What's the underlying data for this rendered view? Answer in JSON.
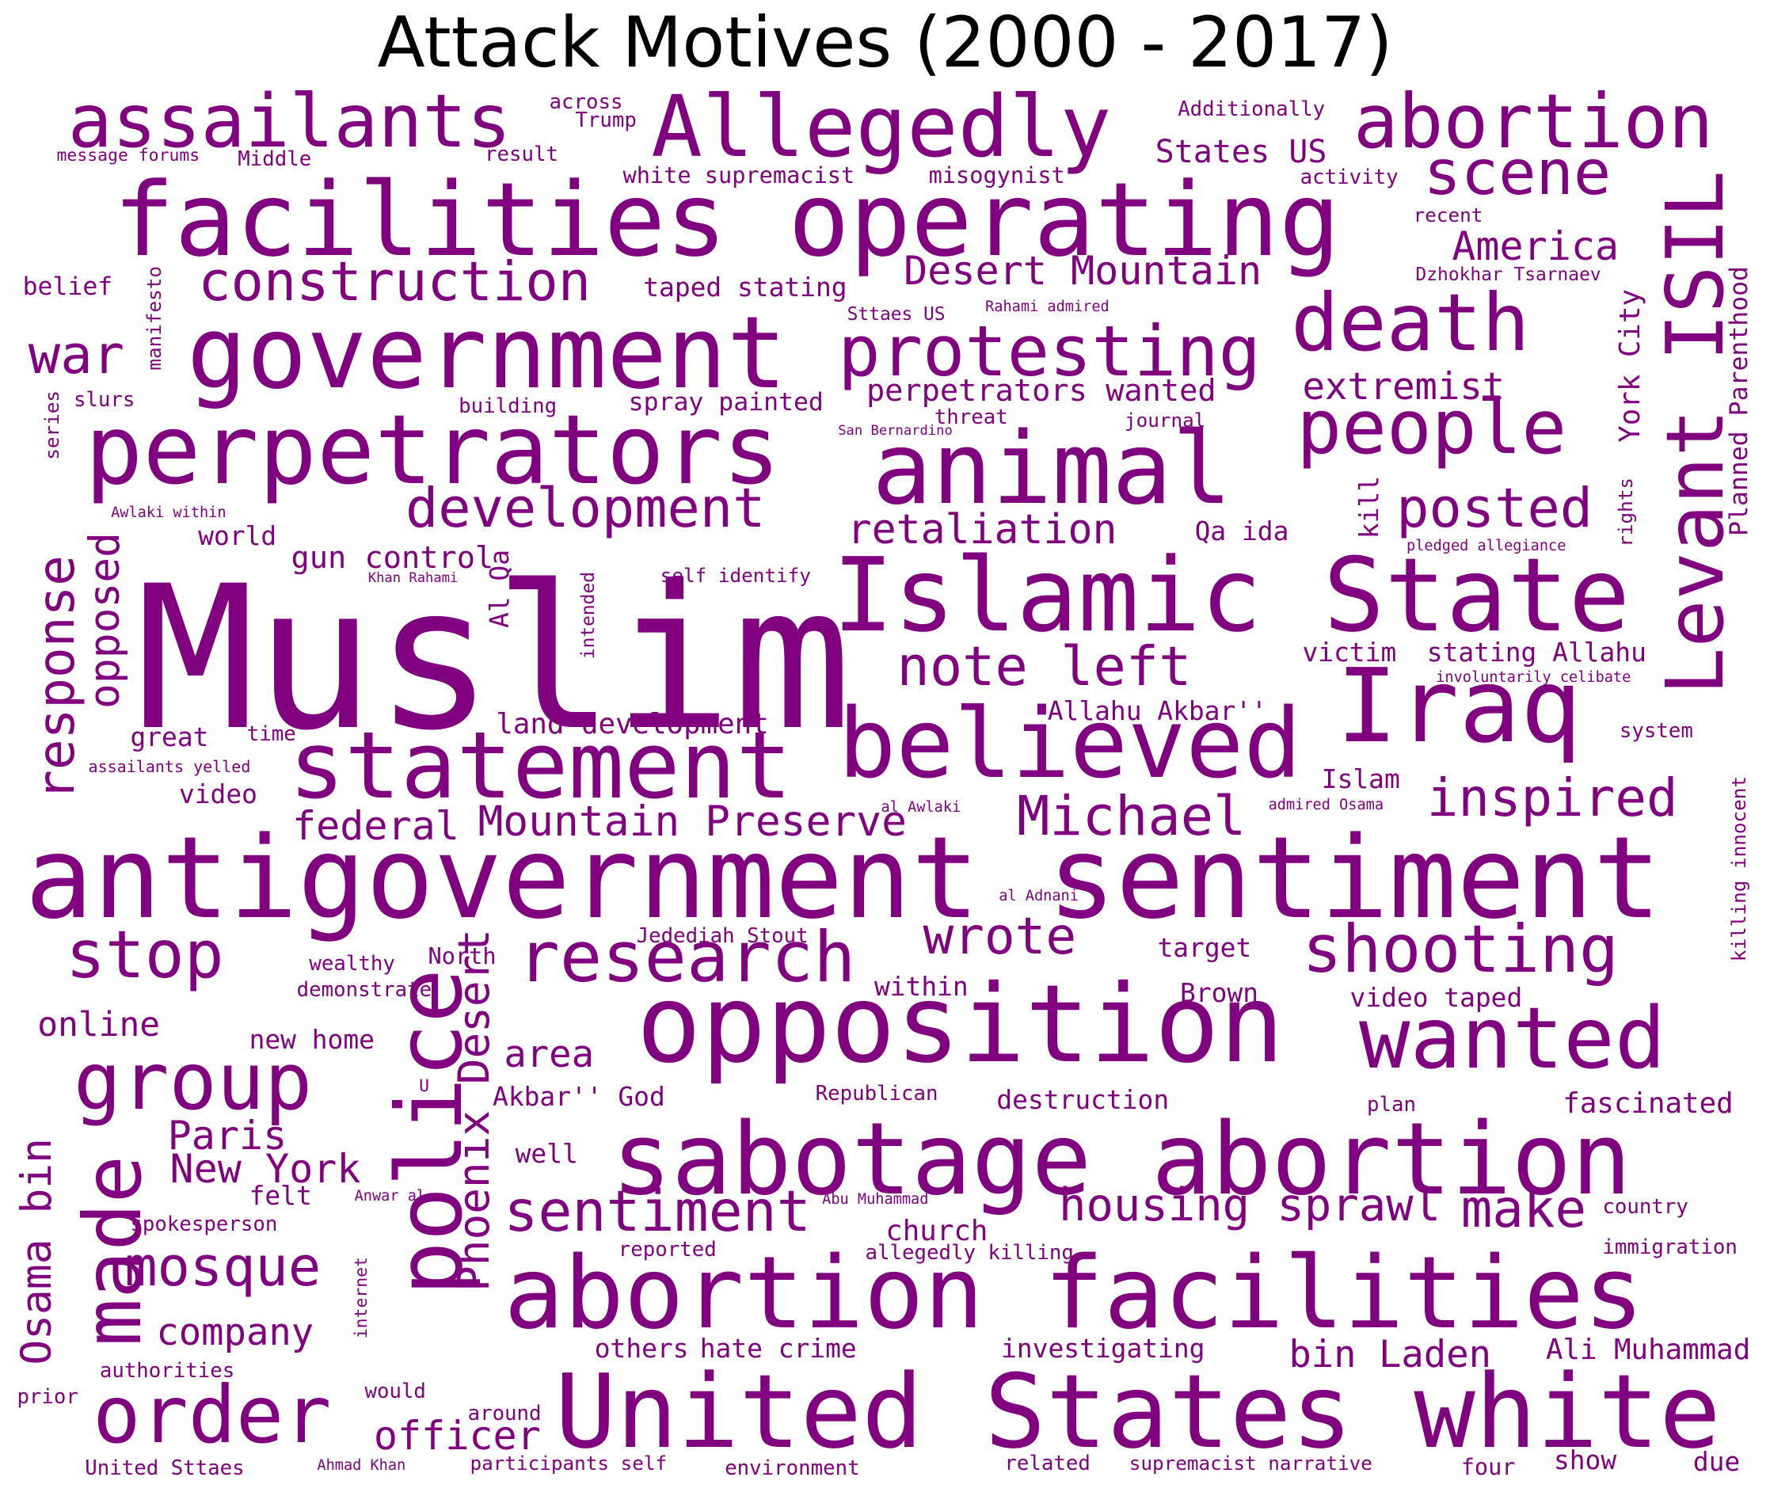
{
  "title": "Attack Motives (2000 - 2017)",
  "word_color": "#800080",
  "words": [
    "Muslim",
    "antigovernment sentiment",
    "facilities operating",
    "Islamic State",
    "opposition",
    "abortion facilities",
    "United States white",
    "sabotage abortion",
    "government",
    "perpetrators",
    "animal",
    "statement",
    "believed",
    "Iraq",
    "Levant ISIL",
    "police",
    "Allegedly",
    "assailants",
    "abortion",
    "protesting",
    "death",
    "people",
    "group",
    "research",
    "wanted",
    "shooting",
    "order",
    "made",
    "scene",
    "construction",
    "development",
    "note left",
    "stop",
    "Desert Mountain",
    "America",
    "war",
    "posted",
    "inspired",
    "Michael",
    "Mountain Preserve",
    "wrote",
    "sentiment",
    "housing sprawl",
    "make",
    "mosque",
    "Phoenix Desert",
    "response",
    "opposed",
    "federal",
    "retaliation",
    "extremist",
    "perpetrators wanted",
    "Osama bin",
    "Paris",
    "New York",
    "area",
    "company",
    "officer",
    "bin Laden",
    "gun control",
    "online",
    "Ali Muhammad",
    "States US",
    "York City",
    "Planned Parenthood",
    "land development",
    "victim",
    "stating Allahu",
    "Allahu Akbar''",
    "Islam",
    "video taped",
    "church",
    "fascinated",
    "destruction",
    "Akbar'' God",
    "investigating",
    "hate crime",
    "taped stating",
    "spray painted",
    "white supremacist",
    "misogynist",
    "Qa ida",
    "great",
    "world",
    "Al Qa",
    "video",
    "new home",
    "Brown",
    "target",
    "within",
    "North",
    "Jedediah Stout",
    "well",
    "felt",
    "show",
    "due",
    "four",
    "others",
    "across",
    "Trump",
    "Middle",
    "result",
    "message forums",
    "Additionally",
    "activity",
    "recent",
    "Dzhokhar Tsarnaev",
    "belief",
    "manifesto",
    "Sttaes US",
    "Rahami admired",
    "slurs",
    "series",
    "building",
    "threat",
    "journal",
    "San Bernardino",
    "kill",
    "rights",
    "pledged allegiance",
    "Awlaki within",
    "Khan Rahami",
    "self identify",
    "intended",
    "involuntarily celibate",
    "time",
    "assailants yelled",
    "system",
    "al Awlaki",
    "admired Osama",
    "killing innocent",
    "al Adnani",
    "wealthy",
    "demonstrate",
    "U",
    "Republican",
    "plan",
    "Anwar al",
    "Abu Muhammad",
    "country",
    "spokesperson",
    "reported",
    "allegedly killing",
    "immigration",
    "internet",
    "authorities",
    "prior",
    "would",
    "around",
    "United Sttaes",
    "Ahmad Khan",
    "participants self",
    "environment",
    "related",
    "supremacist narrative"
  ]
}
